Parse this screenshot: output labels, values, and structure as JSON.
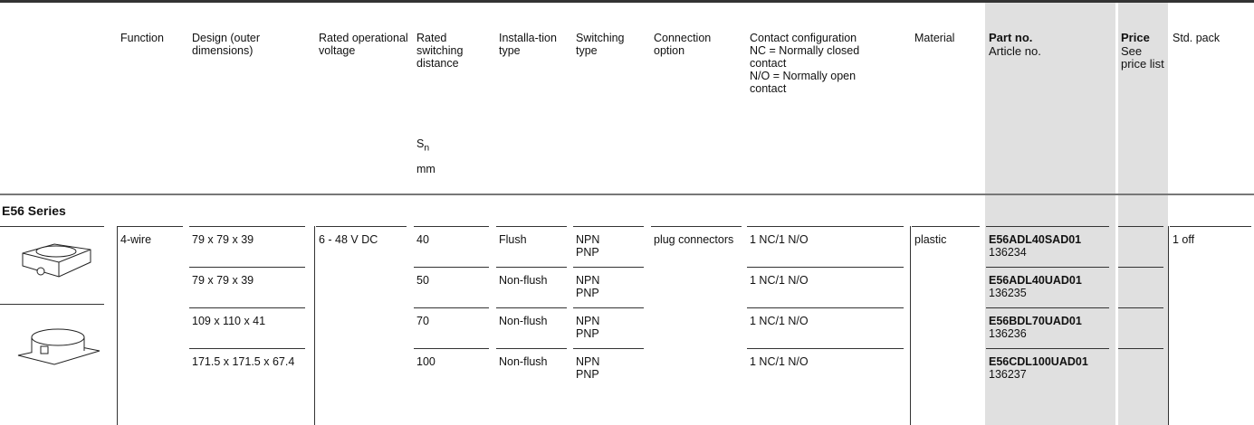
{
  "header": {
    "columns": [
      {
        "label": "Function"
      },
      {
        "label": "Design (outer dimensions)"
      },
      {
        "label": "Rated operational voltage"
      },
      {
        "label": "Rated switching distance",
        "symbol": "S",
        "subscript": "n",
        "unit": "mm"
      },
      {
        "label": "Installa-tion type"
      },
      {
        "label": "Switching type"
      },
      {
        "label": "Connection option"
      },
      {
        "lines": [
          "Contact configuration",
          "NC = Normally closed contact",
          "N/O = Normally open contact"
        ]
      },
      {
        "label": "Material"
      },
      {
        "label": "Part no.",
        "sublabel": "Article no."
      },
      {
        "label": "Price",
        "sublabel": "See price list"
      },
      {
        "label": "Std. pack"
      }
    ]
  },
  "section": "E56 Series",
  "group": {
    "function": "4-wire",
    "voltage": "6 - 48 V DC",
    "connection": "plug connectors",
    "material": "plastic",
    "std_pack": "1 off"
  },
  "rows": [
    {
      "design": "79 x 79 x 39",
      "distance": 40,
      "installation": "Flush",
      "switching": [
        "NPN",
        "PNP"
      ],
      "contact": "1 NC/1 N/O",
      "part_no": "E56ADL40SAD01",
      "article_no": "136234"
    },
    {
      "design": "79 x 79 x 39",
      "distance": 50,
      "installation": "Non-flush",
      "switching": [
        "NPN",
        "PNP"
      ],
      "contact": "1 NC/1 N/O",
      "part_no": "E56ADL40UAD01",
      "article_no": "136235"
    },
    {
      "design": "109 x 110 x 41",
      "distance": 70,
      "installation": "Non-flush",
      "switching": [
        "NPN",
        "PNP"
      ],
      "contact": "1 NC/1 N/O",
      "part_no": "E56BDL70UAD01",
      "article_no": "136236"
    },
    {
      "design": "171.5 x 171.5 x 67.4",
      "distance": 100,
      "installation": "Non-flush",
      "switching": [
        "NPN",
        "PNP"
      ],
      "contact": "1 NC/1 N/O",
      "part_no": "E56CDL100UAD01",
      "article_no": "136237"
    }
  ]
}
